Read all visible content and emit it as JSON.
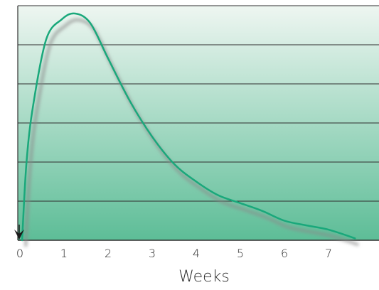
{
  "chart_data": {
    "type": "line",
    "xlabel": "Weeks",
    "ylabel": "",
    "x_ticks": [
      "0",
      "1",
      "2",
      "3",
      "4",
      "5",
      "6",
      "7"
    ],
    "xlim": [
      0,
      7.8
    ],
    "ylim": [
      0,
      6
    ],
    "grid": true,
    "legend": "none",
    "colors": {
      "line": "#1aa87b",
      "shadow": "#8a8a8a",
      "grid": "#2e2e2e",
      "background_top": "#eef6f1",
      "background_bottom": "#5dbd97",
      "marker": "#1a1a1a"
    },
    "marker_icon": "down-arrow-icon",
    "series": [
      {
        "x": [
          0.05,
          0.15,
          0.3,
          0.6,
          0.95,
          1.25,
          1.6,
          2.0,
          2.5,
          3.0,
          3.5,
          4.0,
          4.5,
          5.0,
          5.5,
          6.0,
          6.5,
          7.0,
          7.6
        ],
        "y": [
          0.0,
          2.0,
          3.45,
          5.15,
          5.65,
          5.8,
          5.55,
          4.65,
          3.55,
          2.65,
          1.95,
          1.5,
          1.15,
          0.95,
          0.75,
          0.5,
          0.38,
          0.27,
          0.05
        ]
      }
    ]
  }
}
